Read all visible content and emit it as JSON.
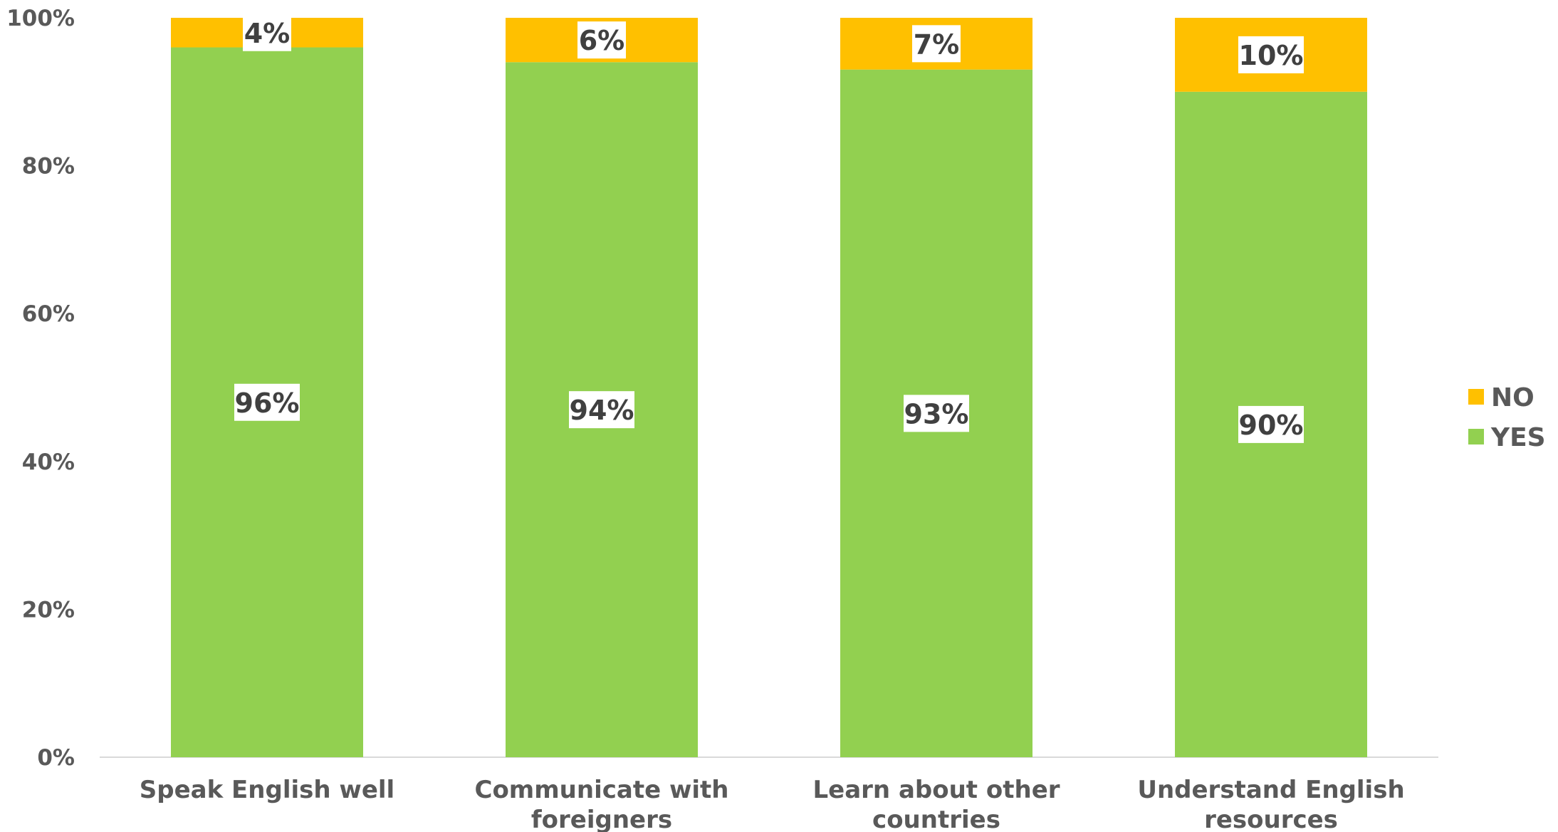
{
  "chart_data": {
    "type": "bar",
    "stacked": true,
    "categories": [
      [
        "Speak English well"
      ],
      [
        "Communicate with",
        "foreigners"
      ],
      [
        "Learn about other",
        "countries"
      ],
      [
        "Understand English",
        "resources"
      ]
    ],
    "series": [
      {
        "name": "YES",
        "color": "#92d050",
        "values": [
          96,
          94,
          93,
          90
        ]
      },
      {
        "name": "NO",
        "color": "#ffc000",
        "values": [
          4,
          6,
          7,
          10
        ]
      }
    ],
    "data_labels": {
      "YES": [
        "96%",
        "94%",
        "93%",
        "90%"
      ],
      "NO": [
        "4%",
        "6%",
        "7%",
        "10%"
      ]
    },
    "y_ticks": [
      "0%",
      "20%",
      "40%",
      "60%",
      "80%",
      "100%"
    ],
    "ylim": [
      0,
      100
    ],
    "grid": false,
    "legend": {
      "position": "right",
      "entries": [
        {
          "name": "NO",
          "color": "#ffc000"
        },
        {
          "name": "YES",
          "color": "#92d050"
        }
      ]
    }
  }
}
